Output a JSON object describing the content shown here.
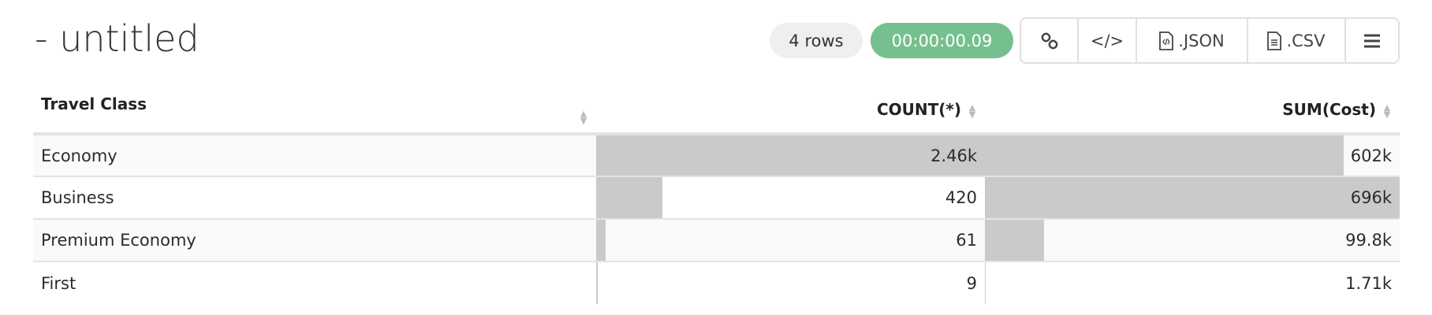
{
  "header": {
    "title": "- untitled",
    "row_count": "4 rows",
    "elapsed": "00:00:00.09"
  },
  "toolbar": {
    "link_icon": "link-icon",
    "embed_label": "</>",
    "json_label": ".JSON",
    "csv_label": ".CSV",
    "menu_icon": "hamburger-menu-icon"
  },
  "colors": {
    "elapsed_badge": "#75c08e",
    "bar": "#cacaca"
  },
  "table": {
    "columns": [
      "Travel Class",
      "COUNT(*)",
      "SUM(Cost)"
    ],
    "rows": [
      {
        "travel_class": "Economy",
        "count": "2.46k",
        "count_value": 2460,
        "sum": "602k",
        "sum_value": 602000
      },
      {
        "travel_class": "Business",
        "count": "420",
        "count_value": 420,
        "sum": "696k",
        "sum_value": 696000
      },
      {
        "travel_class": "Premium Economy",
        "count": "61",
        "count_value": 61,
        "sum": "99.8k",
        "sum_value": 99800
      },
      {
        "travel_class": "First",
        "count": "9",
        "count_value": 9,
        "sum": "1.71k",
        "sum_value": 1710
      }
    ]
  }
}
